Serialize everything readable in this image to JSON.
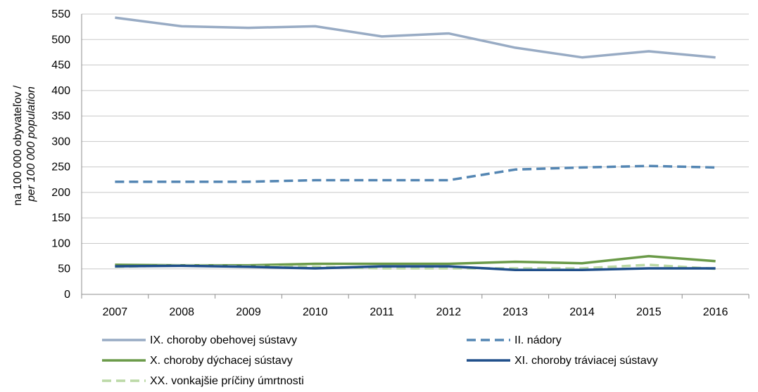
{
  "chart_data": {
    "type": "line",
    "title": "",
    "ylabel_line1": "na 100 000 obyvateľov /",
    "ylabel_line2": "per 100 000 population",
    "xlabel": "",
    "ylim": [
      0,
      550
    ],
    "yticks": [
      "0",
      "50",
      "100",
      "150",
      "200",
      "250",
      "300",
      "350",
      "400",
      "450",
      "500",
      "550"
    ],
    "categories": [
      "2007",
      "2008",
      "2009",
      "2010",
      "2011",
      "2012",
      "2013",
      "2014",
      "2015",
      "2016"
    ],
    "grid": "horizontal",
    "legend_position": "bottom",
    "series": [
      {
        "name": "IX. choroby obehovej sústavy",
        "color": "#98abc4",
        "dash": "solid",
        "values": [
          543,
          526,
          523,
          526,
          506,
          512,
          484,
          465,
          477,
          465
        ]
      },
      {
        "name": "II. nádory",
        "color": "#5486b3",
        "dash": "dashed",
        "values": [
          221,
          221,
          221,
          224,
          224,
          224,
          245,
          249,
          252,
          249
        ]
      },
      {
        "name": "X. choroby dýchacej sústavy",
        "color": "#6a9a48",
        "dash": "solid",
        "values": [
          58,
          57,
          57,
          60,
          60,
          60,
          64,
          61,
          75,
          65
        ]
      },
      {
        "name": "XI. choroby tráviacej sústavy",
        "color": "#1f4e8a",
        "dash": "solid",
        "values": [
          55,
          56,
          54,
          51,
          55,
          55,
          48,
          48,
          51,
          51
        ]
      },
      {
        "name": "XX. vonkajšie príčiny úmrtnosti",
        "color": "#bcd9a6",
        "dash": "dashed",
        "values": [
          54,
          57,
          55,
          54,
          51,
          51,
          51,
          51,
          58,
          50
        ]
      }
    ]
  }
}
